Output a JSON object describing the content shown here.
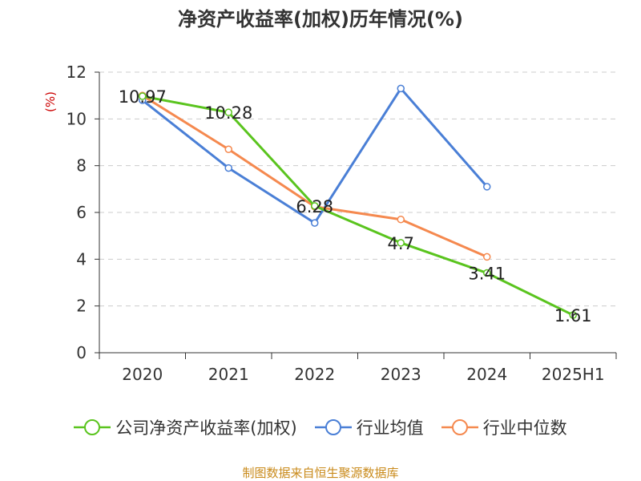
{
  "chart_data": {
    "type": "line",
    "title": "净资产收益率(加权)历年情况(%)",
    "ylabel": "(%)",
    "xlabel": "",
    "categories": [
      "2020",
      "2021",
      "2022",
      "2023",
      "2024",
      "2025H1"
    ],
    "ylim": [
      0,
      12
    ],
    "yticks": [
      "0",
      "2",
      "4",
      "6",
      "8",
      "10",
      "12"
    ],
    "grid": true,
    "legend_position": "bottom",
    "series": [
      {
        "name": "公司净资产收益率(加权)",
        "color": "#5ac41e",
        "values": [
          10.97,
          10.28,
          6.28,
          4.7,
          3.41,
          1.61
        ],
        "labels": [
          "10.97",
          "10.28",
          "6.28",
          "4.7",
          "3.41",
          "1.61"
        ]
      },
      {
        "name": "行业均值",
        "color": "#4a7fd6",
        "values": [
          10.8,
          7.9,
          5.55,
          11.3,
          7.1,
          null
        ],
        "labels": []
      },
      {
        "name": "行业中位数",
        "color": "#f5894f",
        "values": [
          11.0,
          8.7,
          6.25,
          5.7,
          4.1,
          null
        ],
        "labels": []
      }
    ]
  },
  "source": "制图数据来自恒生聚源数据库"
}
